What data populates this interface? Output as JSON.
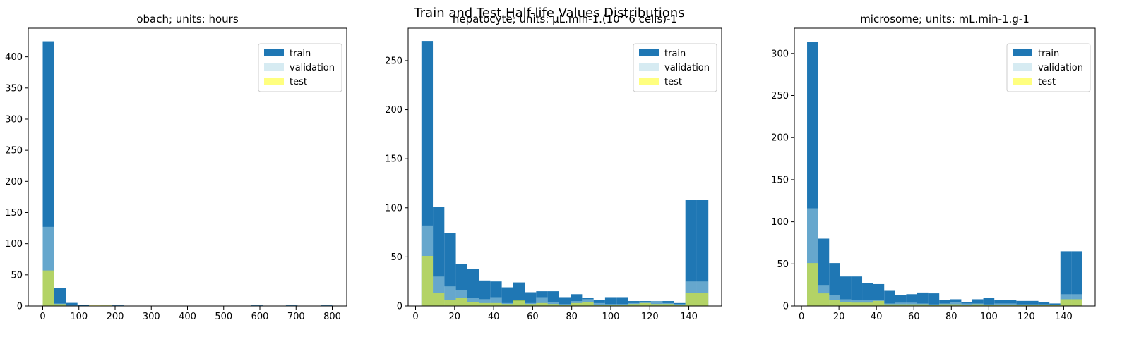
{
  "figure": {
    "suptitle": "Train and Test Half-life Values Distributions",
    "colors": {
      "train": "#1f77b4",
      "validation": "#add8e6",
      "test": "#ffff00",
      "overlay_alpha": 0.5
    }
  },
  "chart_data": [
    {
      "type": "bar",
      "subtype": "stacked-overlay histogram",
      "title": "obach; units: hours",
      "xlabel": "",
      "ylabel": "",
      "xlim": [
        -40,
        840
      ],
      "ylim": [
        0,
        446
      ],
      "xticks": [
        0,
        100,
        200,
        300,
        400,
        500,
        600,
        700,
        800
      ],
      "yticks": [
        0,
        50,
        100,
        150,
        200,
        250,
        300,
        350,
        400
      ],
      "legend": {
        "entries": [
          "train",
          "validation",
          "test"
        ],
        "placement": "top-right"
      },
      "grid": false,
      "bin_edges": [
        0,
        32,
        64,
        96,
        128,
        160,
        192,
        224,
        256,
        288,
        320,
        352,
        384,
        416,
        448,
        480,
        512,
        544,
        576,
        608,
        640,
        672,
        704,
        736,
        768,
        800
      ],
      "series": [
        {
          "name": "train",
          "color": "#1f77b4",
          "values": [
            425,
            29,
            5,
            2,
            0,
            0,
            1,
            0,
            0,
            0,
            0,
            0,
            0,
            0,
            0,
            0,
            0,
            0,
            1,
            0,
            0,
            1,
            0,
            0,
            1
          ]
        },
        {
          "name": "validation",
          "color": "#add8e6",
          "values": [
            127,
            4,
            1,
            0,
            0,
            1,
            0,
            0,
            0,
            0,
            0,
            0,
            0,
            0,
            0,
            0,
            0,
            0,
            0,
            0,
            0,
            0,
            0,
            0,
            0
          ]
        },
        {
          "name": "test",
          "color": "#ffff00",
          "values": [
            57,
            3,
            0,
            0,
            1,
            1,
            0,
            0,
            0,
            0,
            0,
            0,
            0,
            0,
            0,
            0,
            0,
            0,
            0,
            0,
            0,
            0,
            0,
            0,
            0
          ]
        }
      ]
    },
    {
      "type": "bar",
      "subtype": "stacked-overlay histogram",
      "title": "hepatocyte; units: µL.min-1.(10^6 cells)-1",
      "xlabel": "",
      "ylabel": "",
      "xlim": [
        -3.8,
        156.8
      ],
      "ylim": [
        0,
        283
      ],
      "xticks": [
        0,
        20,
        40,
        60,
        80,
        100,
        120,
        140
      ],
      "yticks": [
        0,
        50,
        100,
        150,
        200,
        250
      ],
      "legend": {
        "entries": [
          "train",
          "validation",
          "test"
        ],
        "placement": "top-right"
      },
      "grid": false,
      "bin_edges": [
        3,
        8.88,
        14.76,
        20.64,
        26.52,
        32.4,
        38.28,
        44.16,
        50.04,
        55.92,
        61.8,
        67.68,
        73.56,
        79.44,
        85.32,
        91.2,
        97.08,
        102.96,
        108.84,
        114.72,
        120.6,
        126.48,
        132.36,
        138.24,
        144.12,
        150
      ],
      "series": [
        {
          "name": "train",
          "color": "#1f77b4",
          "values": [
            270,
            101,
            74,
            43,
            38,
            26,
            25,
            19,
            24,
            14,
            15,
            15,
            9,
            12,
            8,
            6,
            9,
            9,
            5,
            5,
            5,
            5,
            3,
            108,
            108
          ]
        },
        {
          "name": "validation",
          "color": "#add8e6",
          "values": [
            82,
            30,
            20,
            16,
            8,
            7,
            9,
            3,
            5,
            3,
            9,
            4,
            2,
            5,
            7,
            3,
            2,
            2,
            3,
            4,
            5,
            3,
            2,
            25,
            25
          ]
        },
        {
          "name": "test",
          "color": "#ffff00",
          "values": [
            51,
            13,
            6,
            8,
            4,
            3,
            3,
            2,
            6,
            2,
            3,
            2,
            1,
            3,
            4,
            1,
            1,
            1,
            2,
            3,
            2,
            2,
            1,
            13,
            13
          ]
        }
      ]
    },
    {
      "type": "bar",
      "subtype": "stacked-overlay histogram",
      "title": "microsome; units: mL.min-1.g-1",
      "xlabel": "",
      "ylabel": "",
      "xlim": [
        -3.8,
        156.8
      ],
      "ylim": [
        0,
        330
      ],
      "xticks": [
        0,
        20,
        40,
        60,
        80,
        100,
        120,
        140
      ],
      "yticks": [
        0,
        50,
        100,
        150,
        200,
        250,
        300
      ],
      "legend": {
        "entries": [
          "train",
          "validation",
          "test"
        ],
        "placement": "top-right"
      },
      "grid": false,
      "bin_edges": [
        3,
        8.88,
        14.76,
        20.64,
        26.52,
        32.4,
        38.28,
        44.16,
        50.04,
        55.92,
        61.8,
        67.68,
        73.56,
        79.44,
        85.32,
        91.2,
        97.08,
        102.96,
        108.84,
        114.72,
        120.6,
        126.48,
        132.36,
        138.24,
        144.12,
        150
      ],
      "series": [
        {
          "name": "train",
          "color": "#1f77b4",
          "values": [
            314,
            80,
            51,
            35,
            35,
            27,
            26,
            18,
            13,
            14,
            16,
            15,
            7,
            8,
            5,
            8,
            10,
            7,
            7,
            6,
            6,
            5,
            3,
            65,
            65
          ]
        },
        {
          "name": "validation",
          "color": "#add8e6",
          "values": [
            116,
            25,
            13,
            8,
            7,
            7,
            7,
            3,
            4,
            4,
            3,
            2,
            3,
            5,
            3,
            3,
            2,
            3,
            3,
            2,
            2,
            2,
            1,
            14,
            14
          ]
        },
        {
          "name": "test",
          "color": "#ffff00",
          "values": [
            51,
            15,
            7,
            5,
            4,
            4,
            6,
            2,
            2,
            2,
            2,
            1,
            2,
            2,
            1,
            2,
            1,
            1,
            1,
            1,
            1,
            1,
            1,
            8,
            8
          ]
        }
      ]
    }
  ]
}
